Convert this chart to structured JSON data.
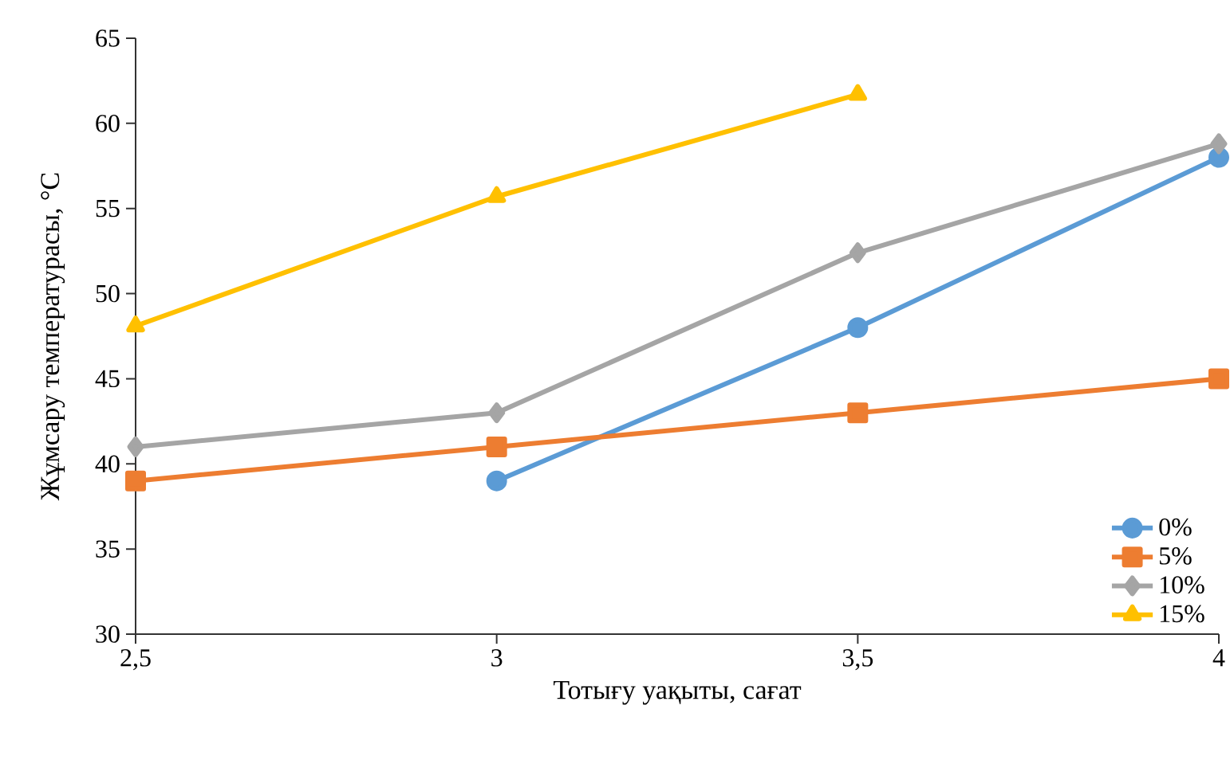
{
  "chart_data": {
    "type": "line",
    "xlabel": "Тотығу уақыты, сағат",
    "ylabel": "Жұмсару температурасы, °C",
    "xlim": [
      2.5,
      4
    ],
    "xticks": [
      {
        "value": 2.5,
        "label": "2,5"
      },
      3,
      {
        "value": 3.5,
        "label": "3,5"
      },
      4
    ],
    "ylim": [
      30,
      65
    ],
    "yticks": [
      30,
      35,
      40,
      45,
      50,
      55,
      60,
      65
    ],
    "grid": false,
    "legend": "bottom right",
    "series": [
      {
        "name": "0%",
        "color": "#5b9bd5",
        "marker": "circle",
        "x": [
          3,
          3.5,
          4
        ],
        "values": [
          39,
          48,
          58
        ]
      },
      {
        "name": "5%",
        "color": "#ed7d31",
        "marker": "square",
        "x": [
          2.5,
          3,
          3.5,
          4
        ],
        "values": [
          39,
          41,
          43,
          45
        ]
      },
      {
        "name": "10%",
        "color": "#a5a5a5",
        "marker": "diamond",
        "x": [
          2.5,
          3,
          3.5,
          4
        ],
        "values": [
          41,
          43,
          52.4,
          58.8
        ]
      },
      {
        "name": "15%",
        "color": "#ffc000",
        "marker": "triangle",
        "x": [
          2.5,
          3,
          3.5
        ],
        "values": [
          48.1,
          55.7,
          61.7
        ]
      }
    ]
  }
}
